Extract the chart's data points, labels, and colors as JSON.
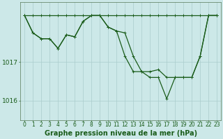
{
  "title": "Graphe pression niveau de la mer (hPa)",
  "xlabel_ticks": [
    "0",
    "1",
    "2",
    "3",
    "4",
    "5",
    "6",
    "7",
    "8",
    "9",
    "10",
    "11",
    "12",
    "13",
    "14",
    "15",
    "16",
    "17",
    "18",
    "19",
    "20",
    "21",
    "22",
    "23"
  ],
  "yticks": [
    1016,
    1017
  ],
  "ylim": [
    1015.5,
    1018.55
  ],
  "xlim": [
    -0.5,
    23.5
  ],
  "bg_color": "#cce8e8",
  "grid_color": "#aacccc",
  "line_color": "#1a5c1a",
  "title_fontsize": 7,
  "tick_fontsize": 5.5,
  "line_width": 0.9,
  "marker_size": 2.5,
  "line1_y": [
    1018.2,
    1018.2,
    1018.2,
    1018.2,
    1018.2,
    1018.2,
    1018.2,
    1018.2,
    1018.2,
    1018.2,
    1018.2,
    1018.2,
    1018.2,
    1018.2,
    1018.2,
    1018.2,
    1018.2,
    1018.2,
    1018.2,
    1018.2,
    1018.2,
    1018.2,
    1018.2,
    1018.2
  ],
  "line2_y": [
    1018.2,
    1017.75,
    1017.6,
    1017.6,
    1017.35,
    1017.7,
    1017.65,
    1018.05,
    1018.2,
    1018.2,
    1017.9,
    1017.8,
    1017.75,
    1017.15,
    1016.75,
    1016.75,
    1016.8,
    1016.6,
    1016.6,
    1016.6,
    1016.6,
    1017.15,
    1018.2,
    1018.2
  ],
  "line3_y": [
    1018.2,
    1017.75,
    1017.6,
    1017.6,
    1017.35,
    1017.7,
    1017.65,
    1018.05,
    1018.2,
    1018.2,
    1017.9,
    1017.8,
    1017.15,
    1016.75,
    1016.75,
    1016.6,
    1016.6,
    1016.05,
    1016.6,
    1016.6,
    1016.6,
    1017.15,
    1018.2,
    1018.2
  ]
}
